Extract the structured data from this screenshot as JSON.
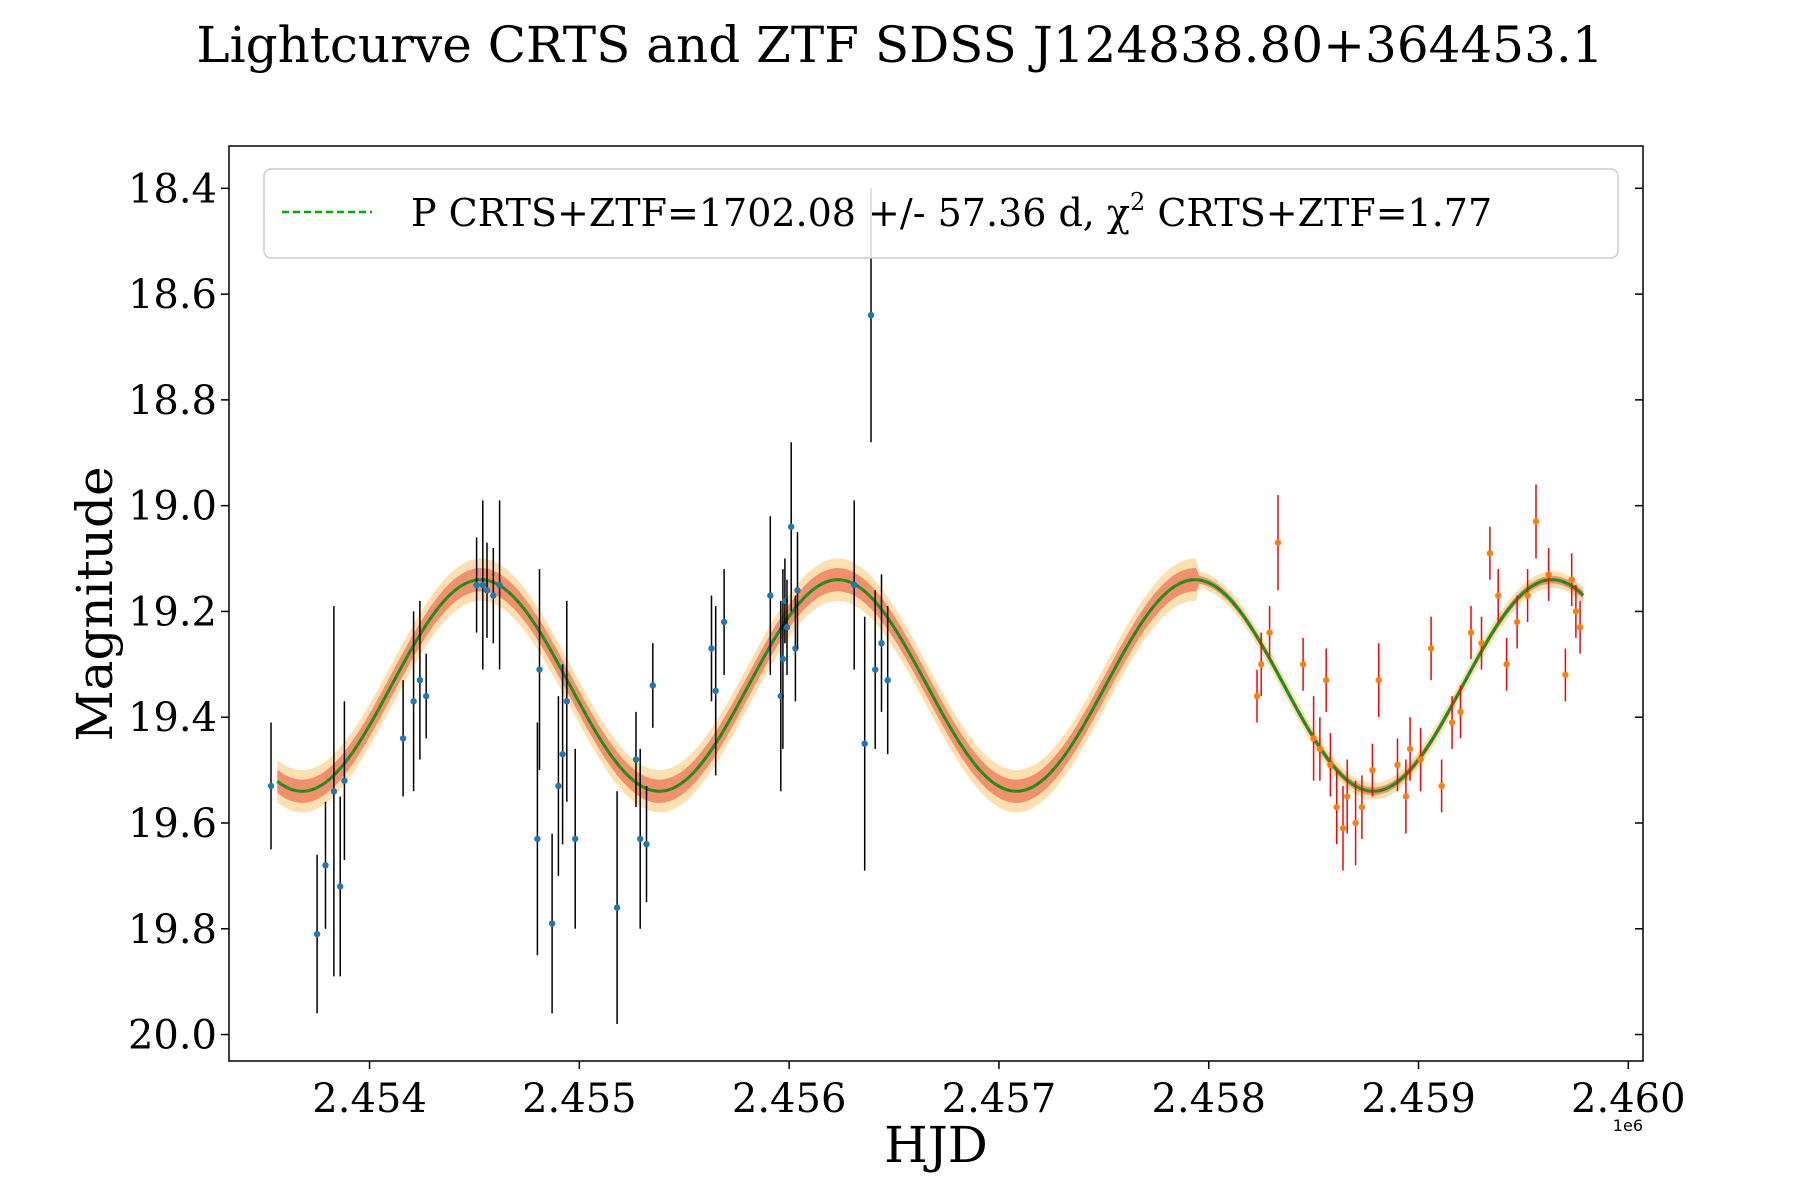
{
  "chart_data": {
    "type": "scatter",
    "title": "Lightcurve CRTS and ZTF SDSS J124838.80+364453.1",
    "xlabel": "HJD",
    "ylabel": "Magnitude",
    "x_offset_label": "1e6",
    "xlim": [
      2453330,
      2460070
    ],
    "ylim": [
      20.05,
      18.32
    ],
    "y_inverted": true,
    "xticks": [
      2454000,
      2455000,
      2456000,
      2457000,
      2458000,
      2459000,
      2460000
    ],
    "xtick_labels": [
      "2.454",
      "2.455",
      "2.456",
      "2.457",
      "2.458",
      "2.459",
      "2.460"
    ],
    "yticks": [
      18.4,
      18.6,
      18.8,
      19.0,
      19.2,
      19.4,
      19.6,
      19.8,
      20.0
    ],
    "ytick_labels": [
      "18.4",
      "18.6",
      "18.8",
      "19.0",
      "19.2",
      "19.4",
      "19.6",
      "19.8",
      "20.0"
    ],
    "legend": {
      "location": "top",
      "line_sample": "dashed-green",
      "label": "P CRTS+ZTF=1702.08 +/- 57.36 d, χ2 CRTS+ZTF=1.77",
      "label_main": "P CRTS+ZTF=1702.08 +/- 57.36 d, χ",
      "label_sup": "2",
      "label_tail": " CRTS+ZTF=1.77"
    },
    "model": {
      "type": "sinusoid",
      "period_days": 1702.08,
      "period_err_days": 57.36,
      "chi2": 1.77,
      "mean_mag": 19.34,
      "amplitude_mag": 0.2,
      "peak_hjd": 2454530,
      "band_inner_halfwidth": 0.022,
      "band_outer_halfwidth": 0.04,
      "band_narrow_halfwidth": 0.012,
      "narrow_band_from_hjd": 2457950
    },
    "colors": {
      "model_line": "#2e7d2e",
      "model_dash": "#00aa00",
      "band_inner": "#f08060",
      "band_outer": "#fde0b0",
      "crts_point": "#1f77b4",
      "crts_error": "#000000",
      "ztf_point": "#ff7f0e",
      "ztf_error": "#ff0000"
    },
    "series": [
      {
        "name": "CRTS",
        "points": [
          [
            2453530,
            19.53,
            0.12
          ],
          [
            2453750,
            19.81,
            0.15
          ],
          [
            2453790,
            19.68,
            0.12
          ],
          [
            2453830,
            19.54,
            0.35
          ],
          [
            2453860,
            19.72,
            0.17
          ],
          [
            2453880,
            19.52,
            0.15
          ],
          [
            2454160,
            19.44,
            0.11
          ],
          [
            2454210,
            19.37,
            0.17
          ],
          [
            2454240,
            19.33,
            0.15
          ],
          [
            2454270,
            19.36,
            0.08
          ],
          [
            2454510,
            19.15,
            0.09
          ],
          [
            2454540,
            19.15,
            0.16
          ],
          [
            2454560,
            19.16,
            0.09
          ],
          [
            2454590,
            19.17,
            0.09
          ],
          [
            2454620,
            19.15,
            0.16
          ],
          [
            2454800,
            19.63,
            0.22
          ],
          [
            2454810,
            19.31,
            0.19
          ],
          [
            2454870,
            19.79,
            0.17
          ],
          [
            2454900,
            19.53,
            0.17
          ],
          [
            2454920,
            19.47,
            0.17
          ],
          [
            2454940,
            19.37,
            0.19
          ],
          [
            2454980,
            19.63,
            0.17
          ],
          [
            2455180,
            19.76,
            0.22
          ],
          [
            2455270,
            19.48,
            0.09
          ],
          [
            2455290,
            19.63,
            0.17
          ],
          [
            2455320,
            19.64,
            0.11
          ],
          [
            2455350,
            19.34,
            0.08
          ],
          [
            2455630,
            19.27,
            0.1
          ],
          [
            2455650,
            19.35,
            0.16
          ],
          [
            2455690,
            19.22,
            0.1
          ],
          [
            2455910,
            19.17,
            0.15
          ],
          [
            2455960,
            19.36,
            0.18
          ],
          [
            2455970,
            19.29,
            0.17
          ],
          [
            2455980,
            19.18,
            0.08
          ],
          [
            2455990,
            19.23,
            0.09
          ],
          [
            2456010,
            19.04,
            0.16
          ],
          [
            2456030,
            19.27,
            0.1
          ],
          [
            2456040,
            19.16,
            0.11
          ],
          [
            2456310,
            19.15,
            0.16
          ],
          [
            2456360,
            19.45,
            0.24
          ],
          [
            2456390,
            18.64,
            0.24
          ],
          [
            2456410,
            19.31,
            0.15
          ],
          [
            2456440,
            19.26,
            0.13
          ],
          [
            2456470,
            19.33,
            0.14
          ]
        ]
      },
      {
        "name": "ZTF",
        "points": [
          [
            2458230,
            19.36,
            0.05
          ],
          [
            2458250,
            19.3,
            0.06
          ],
          [
            2458290,
            19.24,
            0.05
          ],
          [
            2458330,
            19.07,
            0.09
          ],
          [
            2458450,
            19.3,
            0.05
          ],
          [
            2458500,
            19.44,
            0.08
          ],
          [
            2458530,
            19.46,
            0.06
          ],
          [
            2458560,
            19.33,
            0.06
          ],
          [
            2458580,
            19.49,
            0.06
          ],
          [
            2458610,
            19.57,
            0.07
          ],
          [
            2458640,
            19.61,
            0.08
          ],
          [
            2458660,
            19.55,
            0.07
          ],
          [
            2458700,
            19.6,
            0.08
          ],
          [
            2458730,
            19.57,
            0.06
          ],
          [
            2458780,
            19.5,
            0.05
          ],
          [
            2458810,
            19.33,
            0.07
          ],
          [
            2458900,
            19.49,
            0.05
          ],
          [
            2458940,
            19.55,
            0.07
          ],
          [
            2458960,
            19.46,
            0.06
          ],
          [
            2459010,
            19.48,
            0.06
          ],
          [
            2459060,
            19.27,
            0.06
          ],
          [
            2459110,
            19.53,
            0.05
          ],
          [
            2459160,
            19.41,
            0.05
          ],
          [
            2459200,
            19.39,
            0.05
          ],
          [
            2459250,
            19.24,
            0.05
          ],
          [
            2459300,
            19.26,
            0.05
          ],
          [
            2459340,
            19.09,
            0.05
          ],
          [
            2459380,
            19.17,
            0.05
          ],
          [
            2459420,
            19.3,
            0.05
          ],
          [
            2459470,
            19.22,
            0.05
          ],
          [
            2459520,
            19.17,
            0.05
          ],
          [
            2459560,
            19.03,
            0.07
          ],
          [
            2459620,
            19.13,
            0.05
          ],
          [
            2459700,
            19.32,
            0.05
          ],
          [
            2459730,
            19.14,
            0.05
          ],
          [
            2459750,
            19.2,
            0.05
          ],
          [
            2459770,
            19.23,
            0.05
          ]
        ]
      }
    ]
  }
}
